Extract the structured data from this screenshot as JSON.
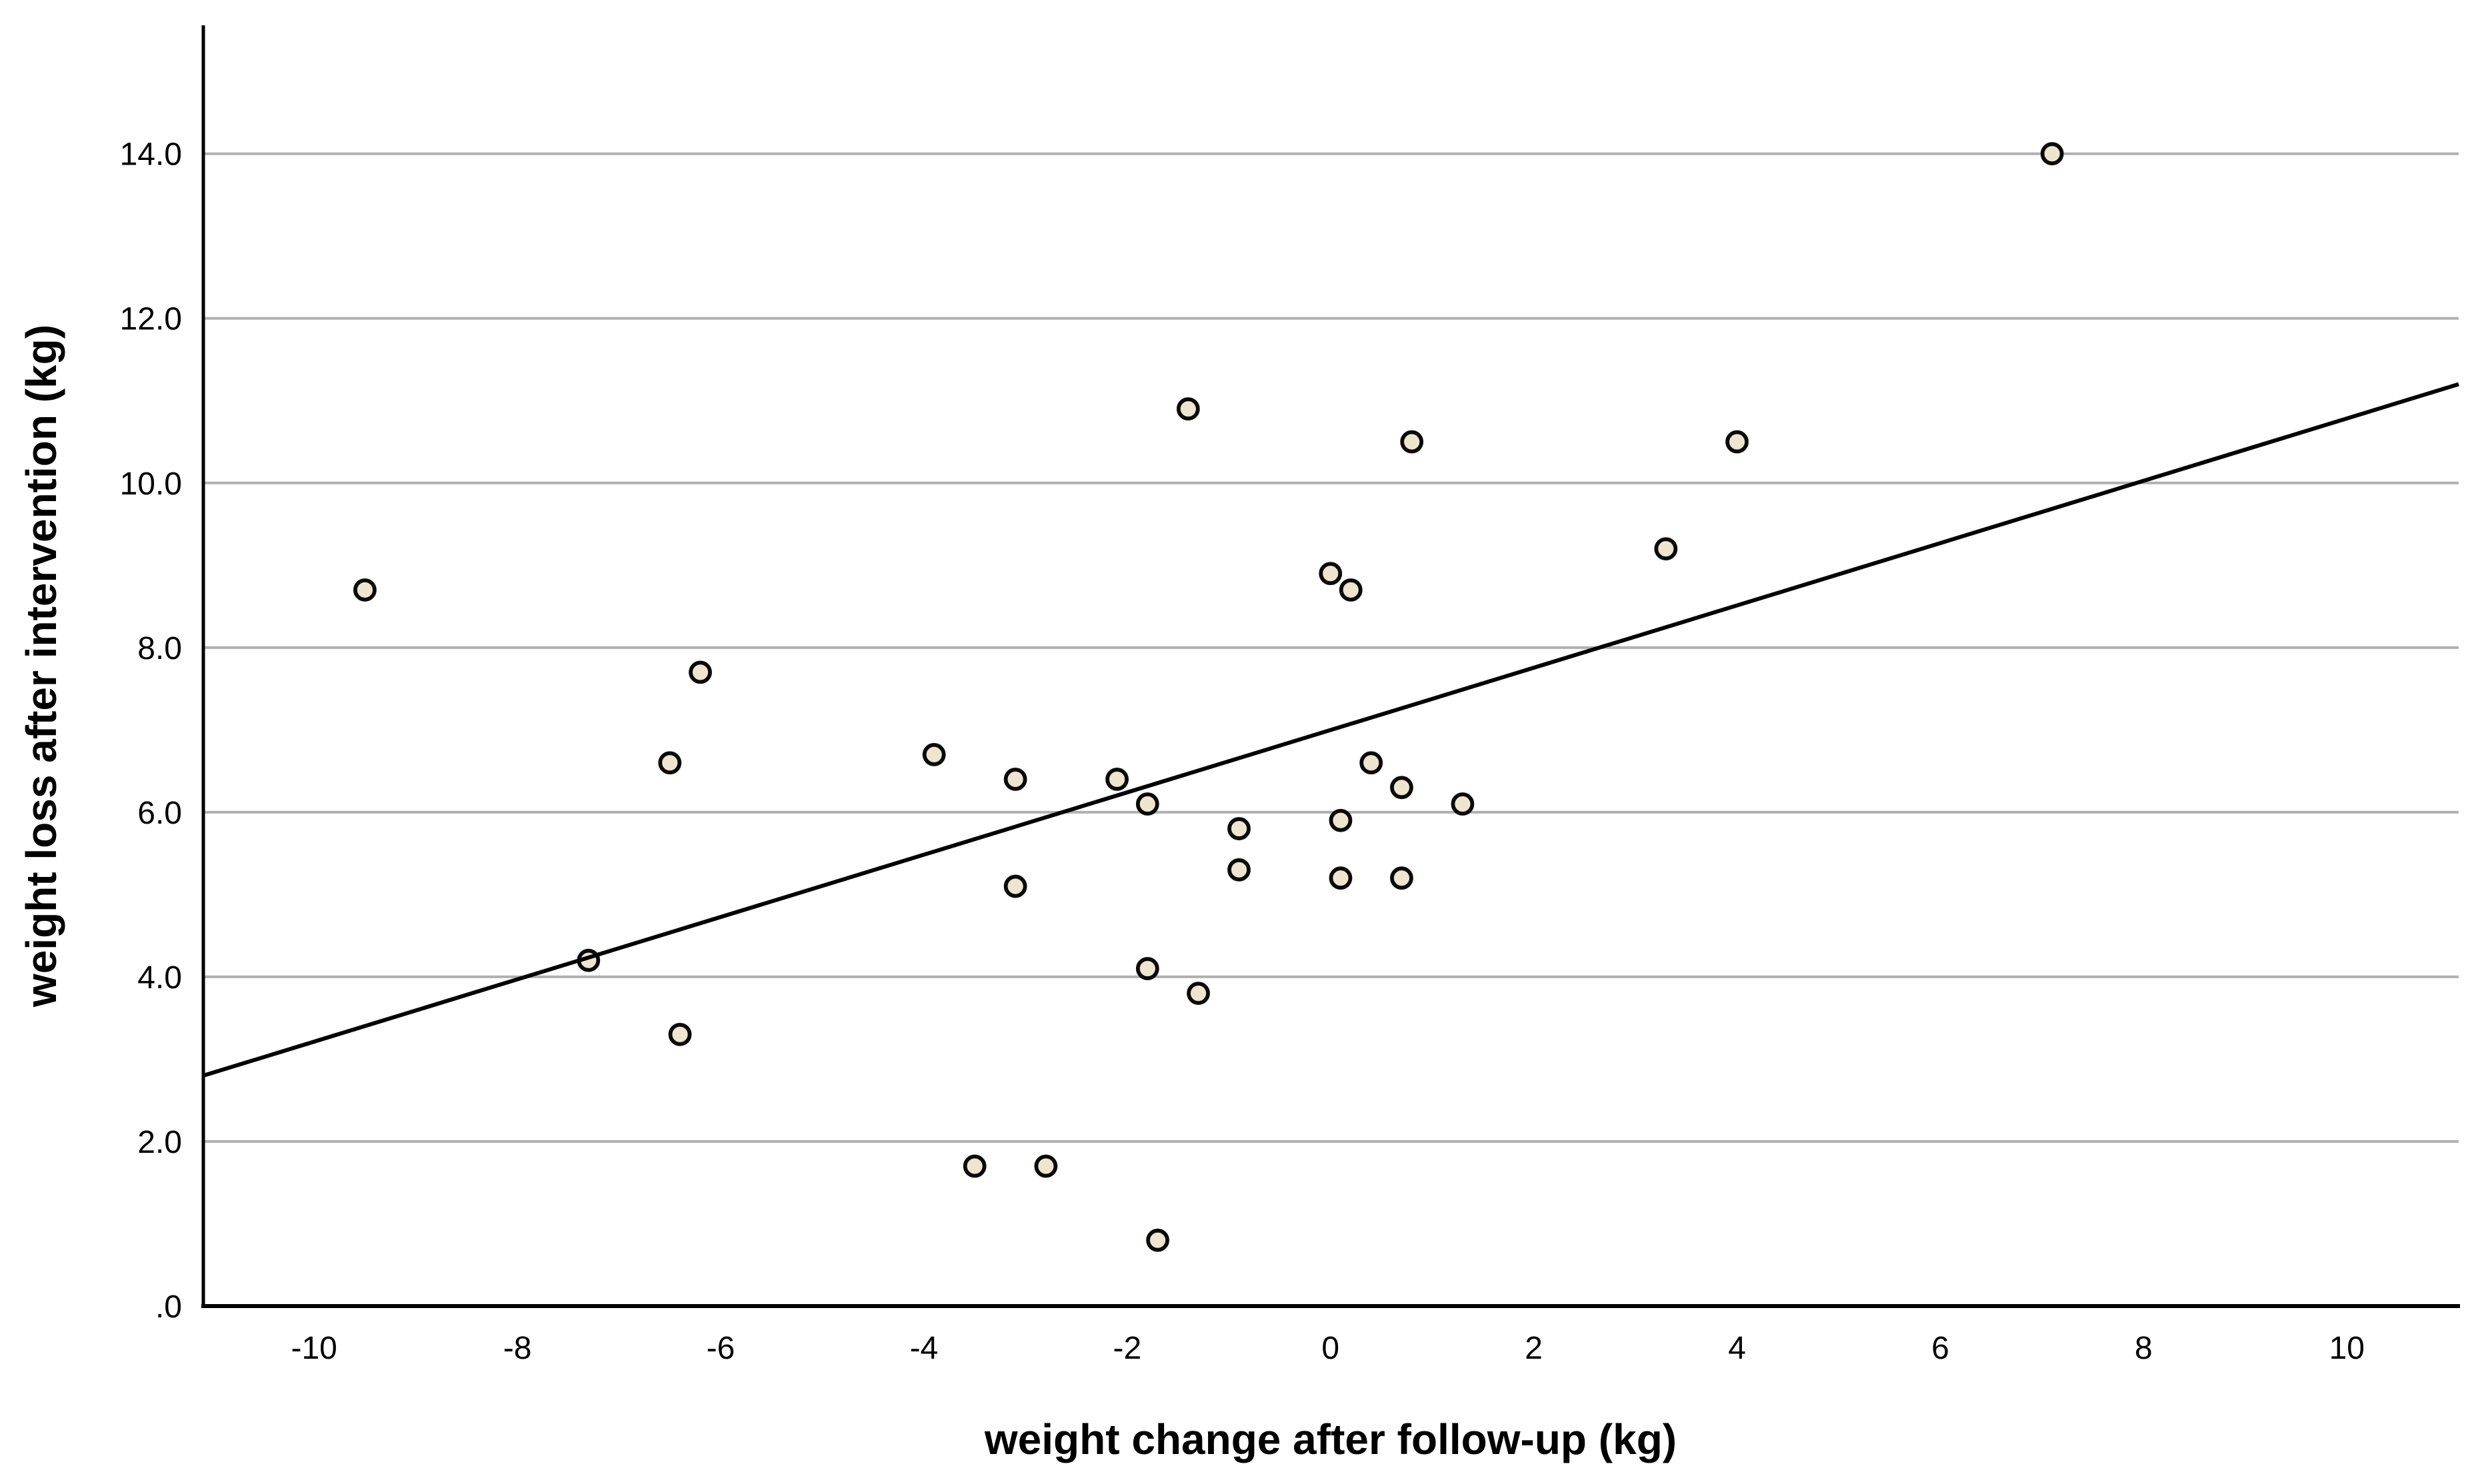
{
  "chart_data": {
    "type": "scatter",
    "title": "",
    "xlabel": "weight change after follow-up (kg)",
    "ylabel": "weight loss after intervention (kg)",
    "xlim": [
      -11.09,
      11.1
    ],
    "ylim": [
      0,
      15.56
    ],
    "xtick_values": [
      -10,
      -8,
      -6,
      -4,
      -2,
      0,
      2,
      4,
      6,
      8,
      10
    ],
    "xtick_labels": [
      "-10",
      "-8",
      "-6",
      "-4",
      "-2",
      "0",
      "2",
      "4",
      "6",
      "8",
      "10"
    ],
    "ytick_values": [
      0,
      2,
      4,
      6,
      8,
      10,
      12,
      14
    ],
    "ytick_labels": [
      ".0",
      "2.0",
      "4.0",
      "6.0",
      "8.0",
      "10.0",
      "12.0",
      "14.0"
    ],
    "grid": "horizontal",
    "legend": "none",
    "points": [
      [
        -9.5,
        8.7
      ],
      [
        -7.3,
        4.2
      ],
      [
        -6.5,
        6.6
      ],
      [
        -6.4,
        3.3
      ],
      [
        -6.2,
        7.7
      ],
      [
        -3.9,
        6.7
      ],
      [
        -3.5,
        1.7
      ],
      [
        -3.1,
        6.4
      ],
      [
        -3.1,
        5.1
      ],
      [
        -2.8,
        1.7
      ],
      [
        -2.1,
        6.4
      ],
      [
        -1.8,
        6.1
      ],
      [
        -1.8,
        4.1
      ],
      [
        -1.7,
        0.8
      ],
      [
        -1.4,
        10.9
      ],
      [
        -1.3,
        3.8
      ],
      [
        -0.9,
        5.8
      ],
      [
        -0.9,
        5.3
      ],
      [
        0.0,
        8.9
      ],
      [
        0.1,
        5.9
      ],
      [
        0.1,
        5.2
      ],
      [
        0.2,
        8.7
      ],
      [
        0.4,
        6.6
      ],
      [
        0.7,
        6.3
      ],
      [
        0.7,
        5.2
      ],
      [
        0.8,
        10.5
      ],
      [
        1.3,
        6.1
      ],
      [
        3.3,
        9.2
      ],
      [
        4.0,
        10.5
      ],
      [
        7.1,
        14.0
      ]
    ],
    "trendline": {
      "x1": -11.09,
      "y1": 2.8,
      "x2": 11.1,
      "y2": 11.2
    },
    "colors": {
      "point_fill": "#ede5cd",
      "point_stroke": "#0a0a0a",
      "trendline": "#000000",
      "gridline": "#b0b0b0",
      "axis": "#000000",
      "text": "#000000",
      "background": "#ffffff"
    }
  }
}
